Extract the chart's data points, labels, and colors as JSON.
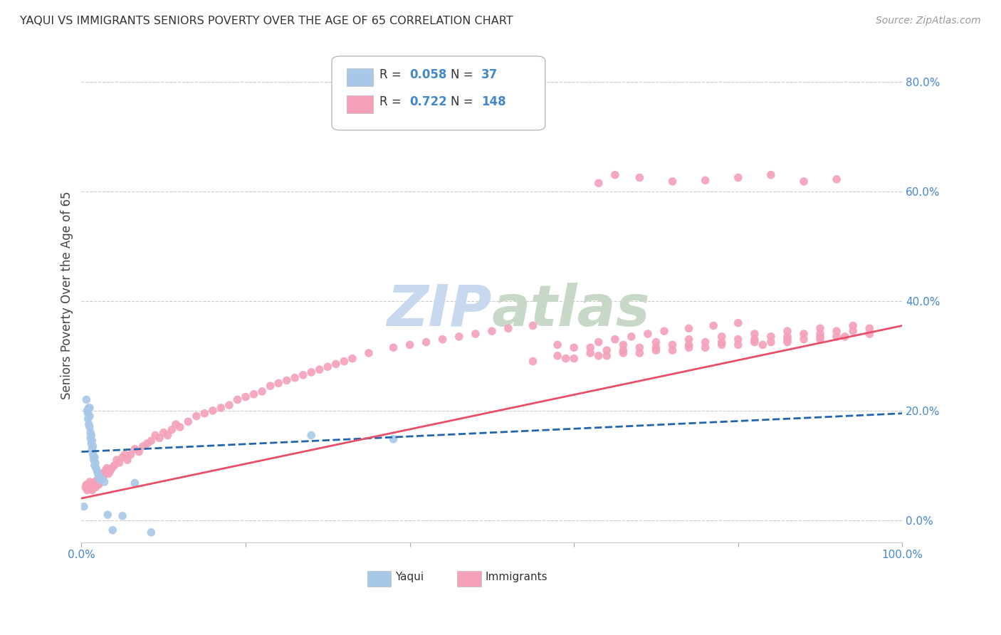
{
  "title": "YAQUI VS IMMIGRANTS SENIORS POVERTY OVER THE AGE OF 65 CORRELATION CHART",
  "source": "Source: ZipAtlas.com",
  "ylabel": "Seniors Poverty Over the Age of 65",
  "xlim": [
    0.0,
    1.0
  ],
  "ylim": [
    -0.04,
    0.86
  ],
  "yticks": [
    0.0,
    0.2,
    0.4,
    0.6,
    0.8
  ],
  "ytick_labels": [
    "0.0%",
    "20.0%",
    "40.0%",
    "60.0%",
    "80.0%"
  ],
  "xticks": [
    0.0,
    0.2,
    0.4,
    0.6,
    0.8,
    1.0
  ],
  "xtick_labels": [
    "0.0%",
    "",
    "",
    "",
    "",
    "100.0%"
  ],
  "yaqui_color": "#a8c8e8",
  "immigrants_color": "#f4a0b8",
  "trend_yaqui_color": "#2166ac",
  "trend_immigrants_color": "#e8506a",
  "watermark_zip_color": "#c8d8ee",
  "watermark_atlas_color": "#c8d8c8",
  "grid_color": "#cccccc",
  "axis_label_color": "#444444",
  "tick_label_color": "#4488cc",
  "title_color": "#333333",
  "source_color": "#999999",
  "yaqui_x": [
    0.003,
    0.006,
    0.007,
    0.008,
    0.008,
    0.009,
    0.009,
    0.01,
    0.01,
    0.01,
    0.011,
    0.011,
    0.012,
    0.012,
    0.013,
    0.013,
    0.014,
    0.014,
    0.015,
    0.015,
    0.016,
    0.016,
    0.017,
    0.018,
    0.019,
    0.02,
    0.021,
    0.022,
    0.025,
    0.028,
    0.032,
    0.038,
    0.05,
    0.065,
    0.085,
    0.28,
    0.38
  ],
  "yaqui_y": [
    0.025,
    0.22,
    0.2,
    0.195,
    0.185,
    0.205,
    0.175,
    0.205,
    0.19,
    0.17,
    0.16,
    0.15,
    0.155,
    0.14,
    0.145,
    0.13,
    0.135,
    0.12,
    0.115,
    0.11,
    0.115,
    0.1,
    0.105,
    0.095,
    0.09,
    0.085,
    0.08,
    0.075,
    0.075,
    0.07,
    0.01,
    -0.018,
    0.008,
    0.068,
    -0.022,
    0.155,
    0.148
  ],
  "immigrants_x": [
    0.005,
    0.006,
    0.007,
    0.008,
    0.009,
    0.01,
    0.011,
    0.012,
    0.013,
    0.014,
    0.015,
    0.016,
    0.017,
    0.018,
    0.019,
    0.02,
    0.021,
    0.022,
    0.023,
    0.025,
    0.027,
    0.029,
    0.031,
    0.033,
    0.035,
    0.037,
    0.04,
    0.043,
    0.046,
    0.05,
    0.053,
    0.056,
    0.06,
    0.065,
    0.07,
    0.075,
    0.08,
    0.085,
    0.09,
    0.095,
    0.1,
    0.105,
    0.11,
    0.115,
    0.12,
    0.13,
    0.14,
    0.15,
    0.16,
    0.17,
    0.18,
    0.19,
    0.2,
    0.21,
    0.22,
    0.23,
    0.24,
    0.25,
    0.26,
    0.27,
    0.28,
    0.29,
    0.3,
    0.31,
    0.32,
    0.33,
    0.35,
    0.38,
    0.4,
    0.42,
    0.44,
    0.46,
    0.48,
    0.5,
    0.52,
    0.55,
    0.58,
    0.6,
    0.63,
    0.65,
    0.67,
    0.69,
    0.71,
    0.74,
    0.77,
    0.8,
    0.83,
    0.86,
    0.9,
    0.93,
    0.96,
    0.63,
    0.65,
    0.68,
    0.72,
    0.76,
    0.8,
    0.84,
    0.88,
    0.92,
    0.62,
    0.66,
    0.7,
    0.74,
    0.78,
    0.82,
    0.86,
    0.9,
    0.94,
    0.64,
    0.68,
    0.72,
    0.76,
    0.8,
    0.84,
    0.88,
    0.92,
    0.96,
    0.66,
    0.7,
    0.74,
    0.78,
    0.82,
    0.86,
    0.9,
    0.58,
    0.62,
    0.66,
    0.7,
    0.74,
    0.78,
    0.82,
    0.86,
    0.9,
    0.94,
    0.6,
    0.64,
    0.68,
    0.72,
    0.76,
    0.8,
    0.84,
    0.88,
    0.92,
    0.55,
    0.59,
    0.63
  ],
  "immigrants_y": [
    0.06,
    0.065,
    0.055,
    0.06,
    0.065,
    0.07,
    0.06,
    0.065,
    0.055,
    0.06,
    0.065,
    0.07,
    0.06,
    0.065,
    0.07,
    0.075,
    0.065,
    0.07,
    0.08,
    0.085,
    0.08,
    0.09,
    0.095,
    0.085,
    0.09,
    0.095,
    0.1,
    0.11,
    0.105,
    0.115,
    0.12,
    0.11,
    0.12,
    0.13,
    0.125,
    0.135,
    0.14,
    0.145,
    0.155,
    0.15,
    0.16,
    0.155,
    0.165,
    0.175,
    0.17,
    0.18,
    0.19,
    0.195,
    0.2,
    0.205,
    0.21,
    0.22,
    0.225,
    0.23,
    0.235,
    0.245,
    0.25,
    0.255,
    0.26,
    0.265,
    0.27,
    0.275,
    0.28,
    0.285,
    0.29,
    0.295,
    0.305,
    0.315,
    0.32,
    0.325,
    0.33,
    0.335,
    0.34,
    0.345,
    0.35,
    0.355,
    0.32,
    0.315,
    0.325,
    0.33,
    0.335,
    0.34,
    0.345,
    0.35,
    0.355,
    0.36,
    0.32,
    0.325,
    0.33,
    0.335,
    0.34,
    0.615,
    0.63,
    0.625,
    0.618,
    0.62,
    0.625,
    0.63,
    0.618,
    0.622,
    0.315,
    0.32,
    0.325,
    0.33,
    0.335,
    0.34,
    0.345,
    0.35,
    0.355,
    0.31,
    0.315,
    0.32,
    0.325,
    0.33,
    0.335,
    0.34,
    0.345,
    0.35,
    0.305,
    0.31,
    0.315,
    0.32,
    0.325,
    0.33,
    0.335,
    0.3,
    0.305,
    0.31,
    0.315,
    0.32,
    0.325,
    0.33,
    0.335,
    0.34,
    0.345,
    0.295,
    0.3,
    0.305,
    0.31,
    0.315,
    0.32,
    0.325,
    0.33,
    0.335,
    0.29,
    0.295,
    0.3
  ],
  "trend_yaqui_x0": 0.0,
  "trend_yaqui_y0": 0.125,
  "trend_yaqui_x1": 1.0,
  "trend_yaqui_y1": 0.195,
  "trend_imm_x0": 0.0,
  "trend_imm_y0": 0.04,
  "trend_imm_x1": 1.0,
  "trend_imm_y1": 0.355
}
